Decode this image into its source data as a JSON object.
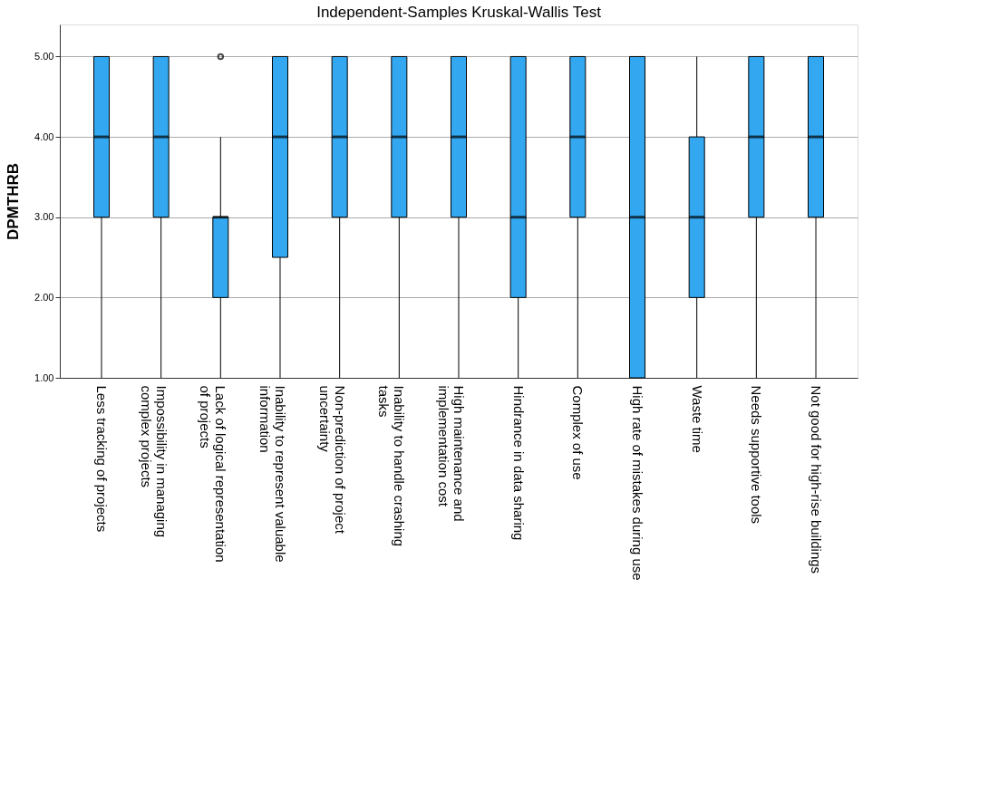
{
  "chart_data": {
    "type": "box",
    "title": "Independent-Samples Kruskal-Wallis Test",
    "ylabel": "DPMTHRB",
    "categories": [
      "Less tracking of projects",
      "Impossibility in managing complex projects",
      "Lack of logical representation of projects",
      "Inability to represent valuable information",
      "Non-prediction of project uncertainty",
      "Inability to handle crashing tasks",
      "High maintenance and implementation cost",
      "Hindrance in data sharing",
      "Complex of use",
      "High rate of mistakes during use",
      "Waste time",
      "Needs supportive tools",
      "Not good for high-rise buildings"
    ],
    "color": "#33a8f0",
    "boxes": [
      {
        "low": 1,
        "q1": 3,
        "median": 4,
        "q3": 5,
        "high": 5
      },
      {
        "low": 1,
        "q1": 3,
        "median": 4,
        "q3": 5,
        "high": 5
      },
      {
        "low": 1,
        "q1": 2,
        "median": 3,
        "q3": 3,
        "high": 4,
        "outliers": [
          5
        ]
      },
      {
        "low": 1,
        "q1": 2.5,
        "median": 4,
        "q3": 5,
        "high": 5
      },
      {
        "low": 1,
        "q1": 3,
        "median": 4,
        "q3": 5,
        "high": 5
      },
      {
        "low": 1,
        "q1": 3,
        "median": 4,
        "q3": 5,
        "high": 5
      },
      {
        "low": 1,
        "q1": 3,
        "median": 4,
        "q3": 5,
        "high": 5
      },
      {
        "low": 1,
        "q1": 2,
        "median": 3,
        "q3": 5,
        "high": 5
      },
      {
        "low": 1,
        "q1": 3,
        "median": 4,
        "q3": 5,
        "high": 5
      },
      {
        "low": 1,
        "q1": 1,
        "median": 3,
        "q3": 5,
        "high": 5
      },
      {
        "low": 1,
        "q1": 2,
        "median": 3,
        "q3": 4,
        "high": 5
      },
      {
        "low": 1,
        "q1": 3,
        "median": 4,
        "q3": 5,
        "high": 5
      },
      {
        "low": 1,
        "q1": 3,
        "median": 4,
        "q3": 5,
        "high": 5
      }
    ],
    "ylim": [
      1,
      5.4
    ],
    "yticks": [
      {
        "value": 1,
        "label": "1.00"
      },
      {
        "value": 2,
        "label": "2.00"
      },
      {
        "value": 3,
        "label": "3.00"
      },
      {
        "value": 4,
        "label": "4.00"
      },
      {
        "value": 5,
        "label": "5.00"
      }
    ],
    "grid": "y"
  }
}
